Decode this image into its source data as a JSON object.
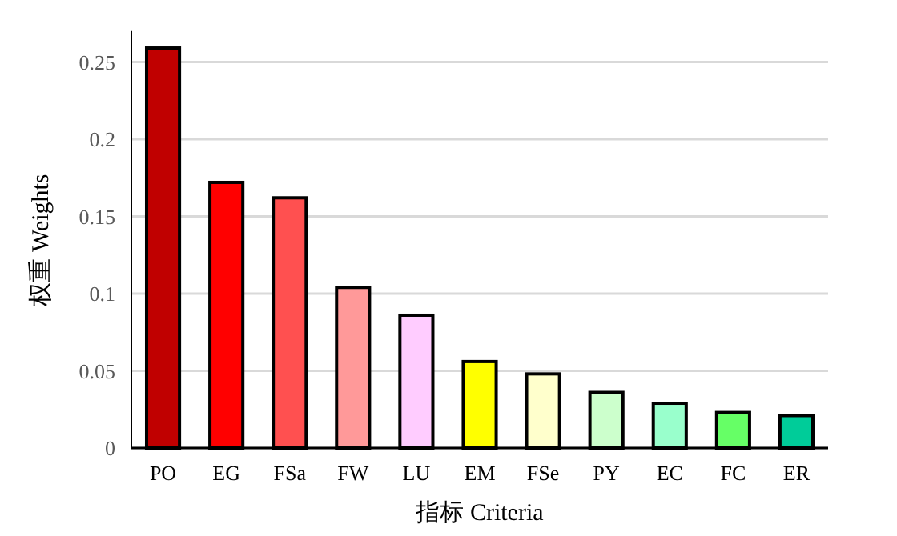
{
  "chart_data": {
    "type": "bar",
    "xlabel": "指标 Criteria",
    "ylabel": "权重 Weights",
    "categories": [
      "PO",
      "EG",
      "FSa",
      "FW",
      "LU",
      "EM",
      "FSe",
      "PY",
      "EC",
      "FC",
      "ER"
    ],
    "values": [
      0.259,
      0.172,
      0.162,
      0.104,
      0.086,
      0.056,
      0.048,
      0.036,
      0.029,
      0.023,
      0.021
    ],
    "colors": [
      "#c00000",
      "#ff0000",
      "#ff5050",
      "#ff9999",
      "#ffccff",
      "#ffff00",
      "#ffffcc",
      "#ccffcc",
      "#99ffcc",
      "#66ff66",
      "#00cc99"
    ],
    "ylim": [
      0,
      0.27
    ],
    "yticks": [
      0,
      0.05,
      0.1,
      0.15,
      0.2,
      0.25
    ],
    "grid": "y"
  }
}
